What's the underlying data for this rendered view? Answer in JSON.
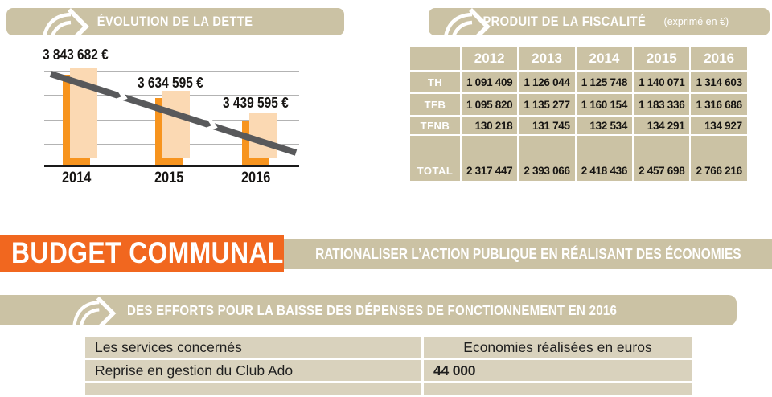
{
  "colors": {
    "tan": "#CBC2A4",
    "orange_banner": "#F1671F",
    "bar_orange": "#F7941E",
    "bar_light": "#FBD9B3",
    "trend_gray": "#58595B",
    "cell_beige": "#D9D2BD",
    "text_black": "#171513",
    "text_white": "#FFFFFF"
  },
  "dette": {
    "header": "ÉVOLUTION DE LA DETTE",
    "chart_data": {
      "type": "bar",
      "title": "ÉVOLUTION DE LA DETTE",
      "categories": [
        "2014",
        "2015",
        "2016"
      ],
      "values": [
        3843682,
        3634595,
        3439595
      ],
      "value_labels": [
        "3 843 682 €",
        "3 634 595 €",
        "3 439 595 €"
      ],
      "unit": "€",
      "ylim": [
        3050000,
        3900000
      ],
      "grid": true,
      "trend": "decreasing-arrow-overlay",
      "legend": "none"
    }
  },
  "fiscalite": {
    "header": "PRODUIT DE LA FISCALITÉ",
    "header_suffix": "(exprimé en €)",
    "years": [
      "2012",
      "2013",
      "2014",
      "2015",
      "2016"
    ],
    "rows": [
      {
        "label": "TH",
        "values": [
          "1 091 409",
          "1 126 044",
          "1 125 748",
          "1 140 071",
          "1 314 603"
        ]
      },
      {
        "label": "TFB",
        "values": [
          "1 095 820",
          "1 135 277",
          "1 160 154",
          "1 183 336",
          "1 316 686"
        ]
      },
      {
        "label": "TFNB",
        "values": [
          "130 218",
          "131 745",
          "132 534",
          "134 291",
          "134 927"
        ]
      },
      {
        "label": "TOTAL",
        "values": [
          "2 317 447",
          "2 393 066",
          "2 418 436",
          "2 457 698",
          "2 766 216"
        ]
      }
    ]
  },
  "budget": {
    "title": "BUDGET COMMUNAL",
    "tagline": "RATIONALISER L’ACTION PUBLIQUE EN RÉALISANT DES ÉCONOMIES"
  },
  "efforts": {
    "header": "DES EFFORTS POUR LA BAISSE DES DÉPENSES DE FONCTIONNEMENT EN 2016",
    "table": {
      "col1_header": "Les services concernés",
      "col2_header": "Economies réalisées en euros",
      "rows": [
        {
          "service": "Reprise en gestion du Club Ado",
          "amount": "44 000"
        }
      ]
    }
  }
}
